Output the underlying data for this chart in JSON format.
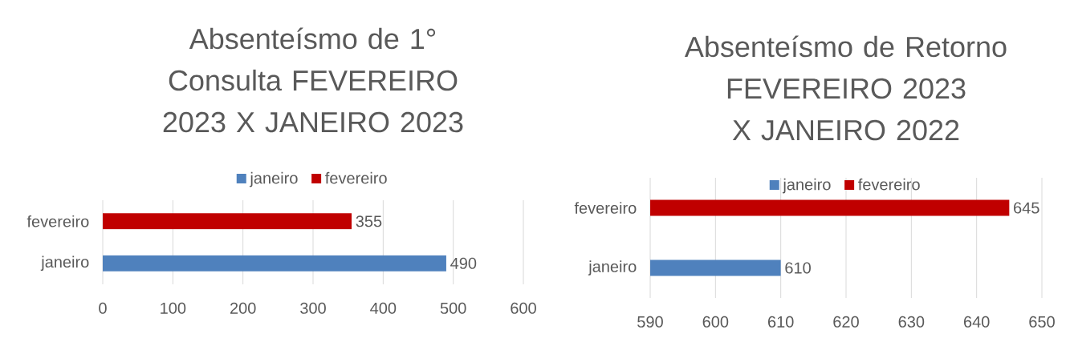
{
  "chart_data": [
    {
      "type": "bar",
      "orientation": "horizontal",
      "title": "Absenteísmo de 1° Consulta FEVEREIRO 2023 X JANEIRO 2023",
      "categories": [
        "fevereiro",
        "janeiro"
      ],
      "series": [
        {
          "name": "janeiro",
          "color": "#4f81bd",
          "values": [
            null,
            490
          ]
        },
        {
          "name": "fevereiro",
          "color": "#c00000",
          "values": [
            355,
            null
          ]
        }
      ],
      "xlim": [
        0,
        600
      ],
      "xticks": [
        0,
        100,
        200,
        300,
        400,
        500,
        600
      ],
      "grid": "x",
      "legend": "top",
      "data_labels": true
    },
    {
      "type": "bar",
      "orientation": "horizontal",
      "title": "Absenteísmo de Retorno FEVEREIRO 2023 X JANEIRO 2022",
      "categories": [
        "fevereiro",
        "janeiro"
      ],
      "series": [
        {
          "name": "janeiro",
          "color": "#4f81bd",
          "values": [
            null,
            610
          ]
        },
        {
          "name": "fevereiro",
          "color": "#c00000",
          "values": [
            645,
            null
          ]
        }
      ],
      "xlim": [
        590,
        650
      ],
      "xticks": [
        590,
        600,
        610,
        620,
        630,
        640,
        650
      ],
      "grid": "x",
      "legend": "top",
      "data_labels": true
    }
  ]
}
